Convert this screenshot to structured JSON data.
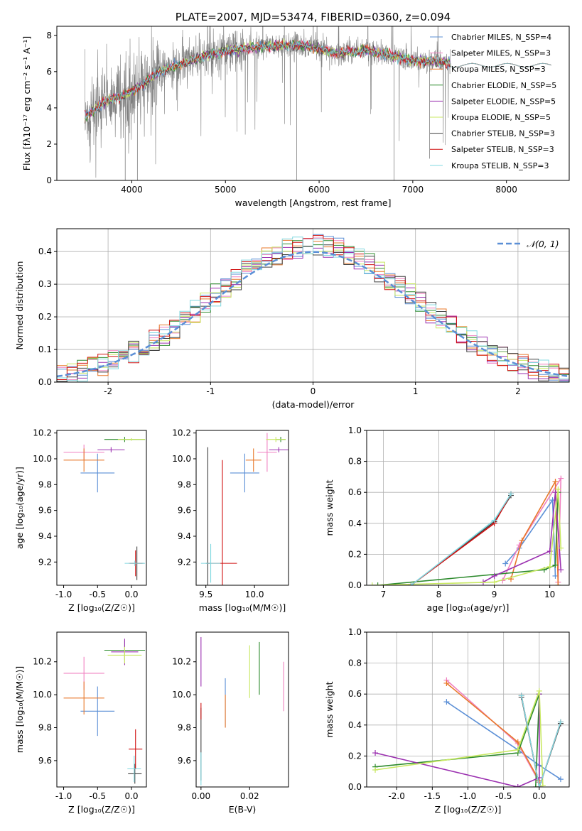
{
  "chart_data": [
    {
      "id": "spectrum",
      "type": "line",
      "title": "PLATE=2007, MJD=53474, FIBERID=0360, z=0.094",
      "xlabel": "wavelength [Angstrom, rest frame]",
      "ylabel": "Flux [fλ10⁻¹⁷ erg cm⁻² s⁻¹ A⁻¹]",
      "xlim": [
        3200,
        8670
      ],
      "ylim": [
        0,
        8.5
      ],
      "xticks": [
        4000,
        5000,
        6000,
        7000,
        8000
      ],
      "yticks": [
        0,
        2,
        4,
        6,
        8
      ],
      "grid": false,
      "legend": "right",
      "data_trend": {
        "x": [
          3500,
          3700,
          4000,
          4300,
          4800,
          5200,
          5500,
          5800,
          6200,
          6500,
          7000,
          7400
        ],
        "y": [
          3.5,
          4.3,
          4.9,
          6.0,
          6.9,
          7.3,
          7.4,
          7.5,
          7.0,
          7.2,
          6.6,
          6.5
        ]
      },
      "model_x_max": 8480,
      "series": [
        {
          "name": "Chabrier MILES, N_SSP=4",
          "color": "#5b8fd6"
        },
        {
          "name": "Salpeter MILES, N_SSP=3",
          "color": "#f080c0"
        },
        {
          "name": "Kroupa MILES, N_SSP=3",
          "color": "#e8782a"
        },
        {
          "name": "Chabrier ELODIE, N_SSP=5",
          "color": "#2e8b2e"
        },
        {
          "name": "Salpeter ELODIE, N_SSP=5",
          "color": "#9b30b0"
        },
        {
          "name": "Kroupa ELODIE, N_SSP=5",
          "color": "#c8e860"
        },
        {
          "name": "Chabrier STELIB, N_SSP=3",
          "color": "#404040"
        },
        {
          "name": "Salpeter STELIB, N_SSP=3",
          "color": "#d01010"
        },
        {
          "name": "Kroupa STELIB, N_SSP=3",
          "color": "#80d8e0"
        }
      ]
    },
    {
      "id": "residuals",
      "type": "line",
      "xlabel": "(data-model)/error",
      "ylabel": "Normed distribution",
      "xlim": [
        -2.5,
        2.5
      ],
      "ylim": [
        0,
        0.47
      ],
      "xticks": [
        -2,
        -1,
        0,
        1,
        2
      ],
      "yticks": [
        0.0,
        0.1,
        0.2,
        0.3,
        0.4
      ],
      "grid": true,
      "legend": "top-right",
      "legend_label": "𝒩(0, 1)",
      "gaussian_color": "#5b8fd6",
      "bin_width": 0.1
    },
    {
      "id": "age_vs_Z",
      "type": "scatter",
      "xlabel": "Z [log₁₀(Z/Z☉)]",
      "ylabel": "age  [log₁₀(age/yr)]",
      "xlim": [
        -1.1,
        0.22
      ],
      "ylim": [
        9.02,
        10.22
      ],
      "xticks": [
        -1.0,
        -0.5,
        0.0
      ],
      "yticks": [
        9.2,
        9.4,
        9.6,
        9.8,
        10.0,
        10.2
      ],
      "grid": false,
      "points": [
        {
          "x": -0.5,
          "y": 9.89,
          "xerr": 0.25,
          "yerr": 0.15,
          "color": "#5b8fd6"
        },
        {
          "x": -0.7,
          "y": 10.05,
          "xerr": 0.3,
          "yerr": 0.06,
          "color": "#f080c0"
        },
        {
          "x": -0.7,
          "y": 9.99,
          "xerr": 0.3,
          "yerr": 0.09,
          "color": "#e8782a"
        },
        {
          "x": -0.1,
          "y": 10.15,
          "xerr": 0.3,
          "yerr": 0.02,
          "color": "#2e8b2e"
        },
        {
          "x": -0.3,
          "y": 10.07,
          "xerr": 0.2,
          "yerr": 0.02,
          "color": "#9b30b0"
        },
        {
          "x": 0.0,
          "y": 10.15,
          "xerr": 0.2,
          "yerr": 0.01,
          "color": "#c8e860"
        },
        {
          "x": 0.08,
          "y": 9.19,
          "xerr": 0.1,
          "yerr": 0.13,
          "color": "#404040"
        },
        {
          "x": 0.06,
          "y": 9.19,
          "xerr": 0.1,
          "yerr": 0.1,
          "color": "#d01010"
        },
        {
          "x": 0.05,
          "y": 9.19,
          "xerr": 0.15,
          "yerr": 0.02,
          "color": "#80d8e0"
        }
      ]
    },
    {
      "id": "age_vs_mass",
      "type": "scatter",
      "xlabel": "mass [log₁₀(M/M☉)]",
      "ylabel": "",
      "xlim": [
        9.4,
        10.35
      ],
      "ylim": [
        9.02,
        10.22
      ],
      "xticks": [
        9.5,
        10.0
      ],
      "yticks": [
        9.2,
        9.4,
        9.6,
        9.8,
        10.0,
        10.2
      ],
      "grid": false,
      "points": [
        {
          "x": 9.9,
          "y": 9.89,
          "xerr": 0.15,
          "yerr": 0.15,
          "color": "#5b8fd6"
        },
        {
          "x": 10.13,
          "y": 10.05,
          "xerr": 0.1,
          "yerr": 0.15,
          "color": "#f080c0"
        },
        {
          "x": 9.99,
          "y": 9.99,
          "xerr": 0.08,
          "yerr": 0.09,
          "color": "#e8782a"
        },
        {
          "x": 10.27,
          "y": 10.15,
          "xerr": 0.05,
          "yerr": 0.02,
          "color": "#2e8b2e"
        },
        {
          "x": 10.25,
          "y": 10.07,
          "xerr": 0.1,
          "yerr": 0.02,
          "color": "#9b30b0"
        },
        {
          "x": 10.22,
          "y": 10.15,
          "xerr": 0.1,
          "yerr": 0.02,
          "color": "#c8e860"
        },
        {
          "x": 9.52,
          "y": 9.19,
          "xerr": 0.02,
          "yerr": 0.9,
          "color": "#404040"
        },
        {
          "x": 9.67,
          "y": 9.19,
          "xerr": 0.15,
          "yerr": 0.8,
          "color": "#d01010"
        },
        {
          "x": 9.55,
          "y": 9.19,
          "xerr": 0.1,
          "yerr": 0.15,
          "color": "#80d8e0"
        }
      ]
    },
    {
      "id": "mass_weight_vs_age",
      "type": "line",
      "xlabel": "age  [log₁₀(age/yr)]",
      "ylabel": "mass weight",
      "xlim": [
        6.7,
        10.35
      ],
      "ylim": [
        0,
        1.0
      ],
      "xticks": [
        7,
        8,
        9,
        10
      ],
      "yticks": [
        0.0,
        0.2,
        0.4,
        0.6,
        0.8,
        1.0
      ],
      "grid": true,
      "series": [
        {
          "color": "#5b8fd6",
          "points": [
            [
              9.2,
              0.14
            ],
            [
              9.45,
              0.24
            ],
            [
              10.05,
              0.55
            ],
            [
              10.1,
              0.06
            ]
          ]
        },
        {
          "color": "#f080c0",
          "points": [
            [
              9.15,
              0.03
            ],
            [
              9.45,
              0.26
            ],
            [
              10.2,
              0.69
            ],
            [
              10.15,
              0.02
            ]
          ]
        },
        {
          "color": "#e8782a",
          "points": [
            [
              9.3,
              0.04
            ],
            [
              9.5,
              0.29
            ],
            [
              10.1,
              0.67
            ],
            [
              10.15,
              0.0
            ]
          ]
        },
        {
          "color": "#2e8b2e",
          "points": [
            [
              6.9,
              0.0
            ],
            [
              9.9,
              0.1
            ],
            [
              10.1,
              0.13
            ],
            [
              10.15,
              0.6
            ]
          ]
        },
        {
          "color": "#9b30b0",
          "points": [
            [
              8.8,
              0.02
            ],
            [
              9.0,
              0.06
            ],
            [
              10.0,
              0.22
            ],
            [
              10.1,
              0.6
            ],
            [
              10.2,
              0.1
            ]
          ]
        },
        {
          "color": "#c8e860",
          "points": [
            [
              6.8,
              0.0
            ],
            [
              9.0,
              0.02
            ],
            [
              10.0,
              0.12
            ],
            [
              10.15,
              0.62
            ],
            [
              10.2,
              0.24
            ]
          ]
        },
        {
          "color": "#404040",
          "points": [
            [
              7.5,
              0.0
            ],
            [
              9.0,
              0.41
            ],
            [
              9.3,
              0.58
            ]
          ]
        },
        {
          "color": "#d01010",
          "points": [
            [
              7.5,
              0.0
            ],
            [
              9.0,
              0.4
            ],
            [
              9.3,
              0.59
            ]
          ]
        },
        {
          "color": "#80d8e0",
          "points": [
            [
              7.5,
              0.0
            ],
            [
              9.0,
              0.42
            ],
            [
              9.3,
              0.59
            ]
          ]
        }
      ]
    },
    {
      "id": "mass_vs_Z",
      "type": "scatter",
      "xlabel": "Z [log₁₀(Z/Z☉)]",
      "ylabel": "mass [log₁₀(M/M☉)]",
      "xlim": [
        -1.1,
        0.22
      ],
      "ylim": [
        9.44,
        10.38
      ],
      "xticks": [
        -1.0,
        -0.5,
        0.0
      ],
      "yticks": [
        9.6,
        9.8,
        10.0,
        10.2
      ],
      "grid": false,
      "points": [
        {
          "x": -0.5,
          "y": 9.9,
          "xerr": 0.25,
          "yerr": 0.15,
          "color": "#5b8fd6"
        },
        {
          "x": -0.7,
          "y": 10.13,
          "xerr": 0.3,
          "yerr": 0.1,
          "color": "#f080c0"
        },
        {
          "x": -0.7,
          "y": 9.98,
          "xerr": 0.3,
          "yerr": 0.1,
          "color": "#e8782a"
        },
        {
          "x": -0.1,
          "y": 10.27,
          "xerr": 0.3,
          "yerr": 0.06,
          "color": "#2e8b2e"
        },
        {
          "x": -0.1,
          "y": 10.26,
          "xerr": 0.2,
          "yerr": 0.08,
          "color": "#9b30b0"
        },
        {
          "x": -0.1,
          "y": 10.24,
          "xerr": 0.25,
          "yerr": 0.05,
          "color": "#c8e860"
        },
        {
          "x": 0.05,
          "y": 9.52,
          "xerr": 0.1,
          "yerr": 0.06,
          "color": "#404040"
        },
        {
          "x": 0.06,
          "y": 9.67,
          "xerr": 0.1,
          "yerr": 0.12,
          "color": "#d01010"
        },
        {
          "x": 0.04,
          "y": 9.55,
          "xerr": 0.1,
          "yerr": 0.08,
          "color": "#80d8e0"
        }
      ]
    },
    {
      "id": "mass_vs_EBV",
      "type": "scatter",
      "xlabel": "E(B-V)",
      "ylabel": "",
      "xlim": [
        -0.002,
        0.036
      ],
      "ylim": [
        9.44,
        10.38
      ],
      "xticks": [
        0.0,
        0.02
      ],
      "xticklabels": [
        "0.00",
        "0.02"
      ],
      "yticks": [
        9.6,
        9.8,
        10.0,
        10.2
      ],
      "grid": false,
      "points": [
        {
          "x": 0.01,
          "y": 9.95,
          "xerr": 0,
          "yerr": 0.15,
          "color": "#5b8fd6"
        },
        {
          "x": 0.034,
          "y": 10.05,
          "xerr": 0,
          "yerr": 0.15,
          "color": "#f080c0"
        },
        {
          "x": 0.01,
          "y": 9.9,
          "xerr": 0,
          "yerr": 0.1,
          "color": "#e8782a"
        },
        {
          "x": 0.024,
          "y": 10.16,
          "xerr": 0,
          "yerr": 0.16,
          "color": "#2e8b2e"
        },
        {
          "x": 0.0,
          "y": 10.2,
          "xerr": 0,
          "yerr": 0.15,
          "color": "#9b30b0"
        },
        {
          "x": 0.02,
          "y": 10.14,
          "xerr": 0,
          "yerr": 0.16,
          "color": "#c8e860"
        },
        {
          "x": 0.0,
          "y": 9.7,
          "xerr": 0,
          "yerr": 0.22,
          "color": "#404040"
        },
        {
          "x": 0.0,
          "y": 9.9,
          "xerr": 0,
          "yerr": 0.05,
          "color": "#d01010"
        },
        {
          "x": 0.0,
          "y": 9.55,
          "xerr": 0,
          "yerr": 0.1,
          "color": "#80d8e0"
        }
      ]
    },
    {
      "id": "mass_weight_vs_Z",
      "type": "line",
      "xlabel": "Z [log₁₀(Z/Z☉)]",
      "ylabel": "mass weight",
      "xlim": [
        -2.42,
        0.42
      ],
      "ylim": [
        0,
        1.0
      ],
      "xticks": [
        -2.0,
        -1.5,
        -1.0,
        -0.5,
        0.0
      ],
      "yticks": [
        0.0,
        0.2,
        0.4,
        0.6,
        0.8,
        1.0
      ],
      "grid": true,
      "series": [
        {
          "color": "#5b8fd6",
          "points": [
            [
              -1.3,
              0.55
            ],
            [
              -0.3,
              0.24
            ],
            [
              0.0,
              0.14
            ],
            [
              0.3,
              0.05
            ]
          ]
        },
        {
          "color": "#f080c0",
          "points": [
            [
              -1.3,
              0.69
            ],
            [
              -0.3,
              0.28
            ],
            [
              0.0,
              0.03
            ]
          ]
        },
        {
          "color": "#e8782a",
          "points": [
            [
              -1.3,
              0.67
            ],
            [
              -0.3,
              0.29
            ],
            [
              0.0,
              0.04
            ]
          ]
        },
        {
          "color": "#2e8b2e",
          "points": [
            [
              -2.3,
              0.13
            ],
            [
              -0.3,
              0.22
            ],
            [
              0.0,
              0.6
            ],
            [
              -0.05,
              0.0
            ]
          ]
        },
        {
          "color": "#9b30b0",
          "points": [
            [
              -2.3,
              0.22
            ],
            [
              -0.3,
              0.0
            ],
            [
              0.0,
              0.06
            ],
            [
              0.0,
              0.6
            ]
          ]
        },
        {
          "color": "#c8e860",
          "points": [
            [
              -2.3,
              0.11
            ],
            [
              -0.3,
              0.24
            ],
            [
              0.0,
              0.62
            ],
            [
              0.05,
              0.01
            ]
          ]
        },
        {
          "color": "#404040",
          "points": [
            [
              -0.25,
              0.58
            ],
            [
              0.0,
              0.0
            ],
            [
              0.3,
              0.41
            ]
          ]
        },
        {
          "color": "#d01010",
          "points": [
            [
              -0.25,
              0.59
            ],
            [
              0.0,
              0.0
            ],
            [
              0.3,
              0.42
            ]
          ]
        },
        {
          "color": "#80d8e0",
          "points": [
            [
              -0.25,
              0.59
            ],
            [
              0.0,
              0.0
            ],
            [
              0.3,
              0.42
            ]
          ]
        }
      ]
    }
  ]
}
